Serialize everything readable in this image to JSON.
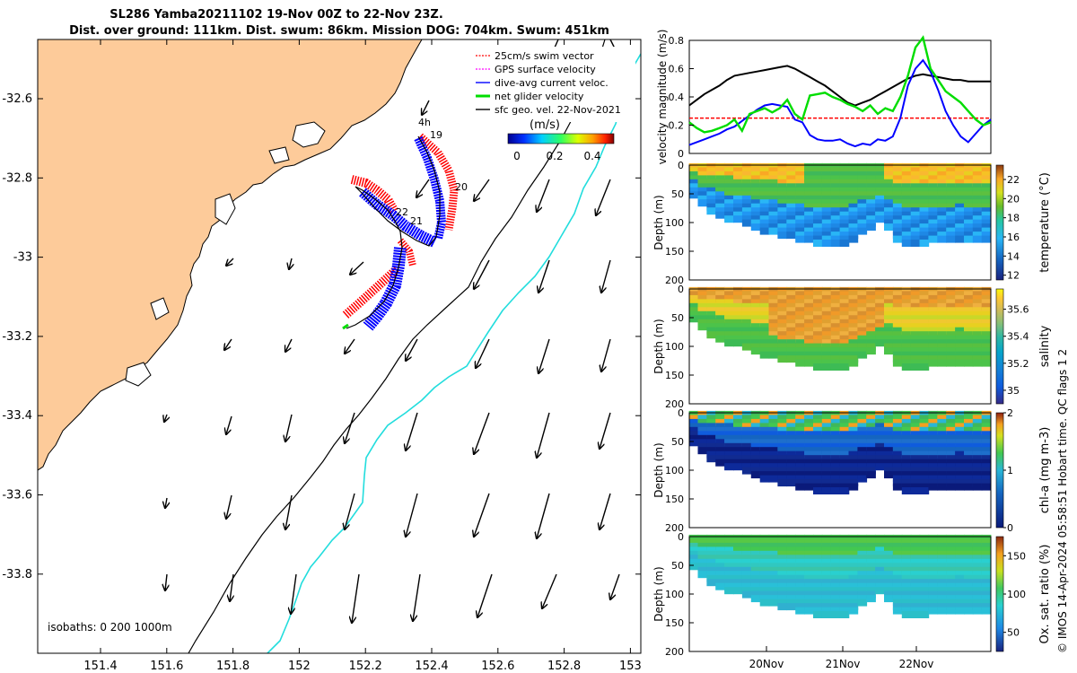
{
  "title_line1": "SL286 Yamba20211102 19-Nov 00Z to 22-Nov 23Z.",
  "title_line2": "Dist. over ground: 111km. Dist. swum: 86km. Mission DOG: 704km. Swum: 451km",
  "credit": "© IMOS 14-Apr-2024 05:58:51 Hobart time. QC flags 1  2",
  "colors": {
    "land": "#FDCB9A",
    "swim": "#FF0000",
    "gps": "#FF00FF",
    "dac": "#0000FF",
    "net": "#00DD00",
    "black": "#000000",
    "isobath": "#22DDDD"
  },
  "map": {
    "x_ticks": [
      "151.4",
      "151.6",
      "151.8",
      "152",
      "152.2",
      "152.4",
      "152.6",
      "152.8",
      "153"
    ],
    "y_ticks": [
      "-32.6",
      "-32.8",
      "-33",
      "-33.2",
      "-33.4",
      "-33.6",
      "-33.8"
    ],
    "legend": [
      {
        "key": "swim",
        "label": "25cm/s swim vector",
        "color": "#FF0000",
        "icon": "dashed-arrow-icon"
      },
      {
        "key": "gps",
        "label": "GPS surface velocity",
        "color": "#FF00FF",
        "icon": "dashed-arrow-icon"
      },
      {
        "key": "dac",
        "label": "dive-avg current veloc.",
        "color": "#0000FF",
        "icon": "arrow-icon"
      },
      {
        "key": "net",
        "label": "net glider velocity",
        "color": "#00DD00",
        "icon": "thick-arrow-icon"
      },
      {
        "key": "geo",
        "label": "sfc geo. vel. 22-Nov-2021",
        "color": "#000000",
        "icon": "arrow-icon"
      }
    ],
    "colorbar_label": "(m/s)",
    "colorbar_ticks": [
      "0",
      "0.2",
      "0.4"
    ],
    "day_labels": [
      "19",
      "20",
      "21",
      "22",
      "4h"
    ],
    "isobath_text": "isobaths: 0   200  1000m"
  },
  "chart_data": [
    {
      "type": "line",
      "ylabel": "velocity magnitude (m/s)",
      "ylim": [
        0,
        0.8
      ],
      "yticks": [
        "0",
        "0.2",
        "0.4",
        "0.6",
        "0.8"
      ],
      "x": [
        0,
        0.1,
        0.2,
        0.3,
        0.4,
        0.5,
        0.6,
        0.7,
        0.8,
        0.9,
        1.0,
        1.1,
        1.2,
        1.3,
        1.4,
        1.5,
        1.6,
        1.7,
        1.8,
        1.9,
        2.0,
        2.1,
        2.2,
        2.3,
        2.4,
        2.5,
        2.6,
        2.7,
        2.8,
        2.9,
        3.0,
        3.1,
        3.2,
        3.3,
        3.4,
        3.5,
        3.6,
        3.7,
        3.8,
        3.9,
        4.0
      ],
      "series": [
        {
          "name": "sfc geo. vel.",
          "color": "#000000",
          "values": [
            0.34,
            0.38,
            0.42,
            0.45,
            0.48,
            0.52,
            0.55,
            0.56,
            0.57,
            0.58,
            0.59,
            0.6,
            0.61,
            0.62,
            0.6,
            0.57,
            0.54,
            0.51,
            0.48,
            0.44,
            0.4,
            0.36,
            0.34,
            0.36,
            0.38,
            0.41,
            0.44,
            0.47,
            0.5,
            0.53,
            0.55,
            0.56,
            0.55,
            0.54,
            0.53,
            0.52,
            0.52,
            0.51,
            0.51,
            0.51,
            0.51
          ]
        },
        {
          "name": "dive-avg current",
          "color": "#0000FF",
          "values": [
            0.06,
            0.08,
            0.1,
            0.12,
            0.14,
            0.17,
            0.19,
            0.23,
            0.27,
            0.31,
            0.34,
            0.35,
            0.34,
            0.33,
            0.24,
            0.22,
            0.13,
            0.1,
            0.09,
            0.09,
            0.1,
            0.07,
            0.05,
            0.07,
            0.06,
            0.1,
            0.09,
            0.12,
            0.25,
            0.48,
            0.6,
            0.66,
            0.58,
            0.45,
            0.3,
            0.2,
            0.12,
            0.08,
            0.14,
            0.2,
            0.24
          ]
        },
        {
          "name": "net glider velocity",
          "color": "#00DD00",
          "values": [
            0.22,
            0.18,
            0.15,
            0.16,
            0.18,
            0.2,
            0.24,
            0.16,
            0.28,
            0.3,
            0.32,
            0.29,
            0.32,
            0.38,
            0.28,
            0.24,
            0.41,
            0.42,
            0.43,
            0.4,
            0.38,
            0.35,
            0.33,
            0.3,
            0.34,
            0.28,
            0.32,
            0.3,
            0.4,
            0.55,
            0.75,
            0.82,
            0.6,
            0.52,
            0.44,
            0.4,
            0.36,
            0.3,
            0.24,
            0.2,
            0.22
          ]
        }
      ],
      "reference": {
        "name": "25cm/s swim",
        "value": 0.25,
        "color": "#FF0000"
      }
    },
    {
      "type": "heatmap",
      "ylabel": "Depth (m)",
      "clabel": "temperature (°C)",
      "ylim": [
        0,
        200
      ],
      "yticks": [
        "0",
        "50",
        "100",
        "150",
        "200"
      ],
      "cticks": [
        "12",
        "14",
        "16",
        "18",
        "20",
        "22"
      ],
      "crange": [
        11.5,
        23.5
      ],
      "colormap": "parula"
    },
    {
      "type": "heatmap",
      "ylabel": "Depth (m)",
      "clabel": "salinity",
      "ylim": [
        0,
        200
      ],
      "yticks": [
        "0",
        "50",
        "100",
        "150",
        "200"
      ],
      "cticks": [
        "35",
        "35.2",
        "35.4",
        "35.6"
      ],
      "crange": [
        34.9,
        35.75
      ],
      "colormap": "parula"
    },
    {
      "type": "heatmap",
      "ylabel": "Depth (m)",
      "clabel": "chl-a (mg m-3)",
      "ylim": [
        0,
        200
      ],
      "yticks": [
        "0",
        "50",
        "100",
        "150",
        "200"
      ],
      "cticks": [
        "0",
        "1",
        "2"
      ],
      "crange": [
        0,
        2
      ],
      "colormap": "parula"
    },
    {
      "type": "heatmap",
      "ylabel": "Depth (m)",
      "clabel": "Ox. sat. ratio (%)",
      "ylim": [
        0,
        200
      ],
      "yticks": [
        "0",
        "50",
        "100",
        "150",
        "200"
      ],
      "cticks": [
        "50",
        "100",
        "150"
      ],
      "crange": [
        25,
        175
      ],
      "colormap": "parula"
    }
  ],
  "time_ticks": [
    "20Nov",
    "21Nov",
    "22Nov"
  ]
}
